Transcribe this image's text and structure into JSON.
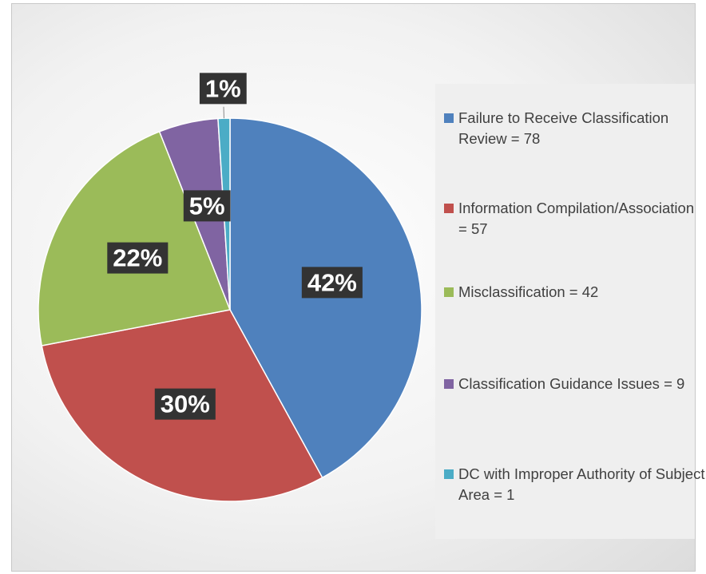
{
  "chart_data": {
    "type": "pie",
    "categories": [
      "Failure to Receive Classification Review = 78",
      "Information Compilation/Association = 57",
      "Misclassification = 42",
      "Classification Guidance Issues = 9",
      "DC with Improper Authority of Subject Area = 1"
    ],
    "values": [
      42,
      30,
      22,
      5,
      1
    ],
    "value_labels": [
      "42%",
      "30%",
      "22%",
      "5%",
      "1%"
    ],
    "colors": [
      "#4f81bd",
      "#c0504d",
      "#9bbb59",
      "#8064a2",
      "#4bacc6"
    ],
    "start_angle": 0,
    "direction": "clockwise",
    "legend": "right"
  }
}
